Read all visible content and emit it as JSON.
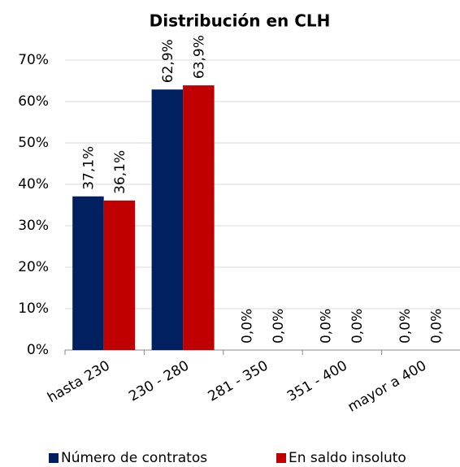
{
  "chart_data": {
    "type": "bar",
    "title": "Distribución en CLH",
    "categories": [
      "hasta 230",
      "230 - 280",
      "281 - 350",
      "351 - 400",
      "mayor a 400"
    ],
    "series": [
      {
        "name": "Número de contratos",
        "color": "#002060",
        "values": [
          37.1,
          62.9,
          0,
          0,
          0
        ],
        "value_labels": [
          "37,1%",
          "62,9%",
          "0,0%",
          "0,0%",
          "0,0%"
        ]
      },
      {
        "name": "En saldo insoluto",
        "color": "#c00000",
        "values": [
          36.1,
          63.9,
          0,
          0,
          0
        ],
        "value_labels": [
          "36,1%",
          "63,9%",
          "0,0%",
          "0,0%",
          "0,0%"
        ]
      }
    ],
    "ylim": [
      0,
      70
    ],
    "yticks": [
      {
        "value": 0,
        "label": "0%"
      },
      {
        "value": 10,
        "label": "10%"
      },
      {
        "value": 20,
        "label": "20%"
      },
      {
        "value": 30,
        "label": "30%"
      },
      {
        "value": 40,
        "label": "40%"
      },
      {
        "value": 50,
        "label": "50%"
      },
      {
        "value": 60,
        "label": "60%"
      },
      {
        "value": 70,
        "label": "70%"
      }
    ],
    "grid": true,
    "legend": "bottom"
  }
}
